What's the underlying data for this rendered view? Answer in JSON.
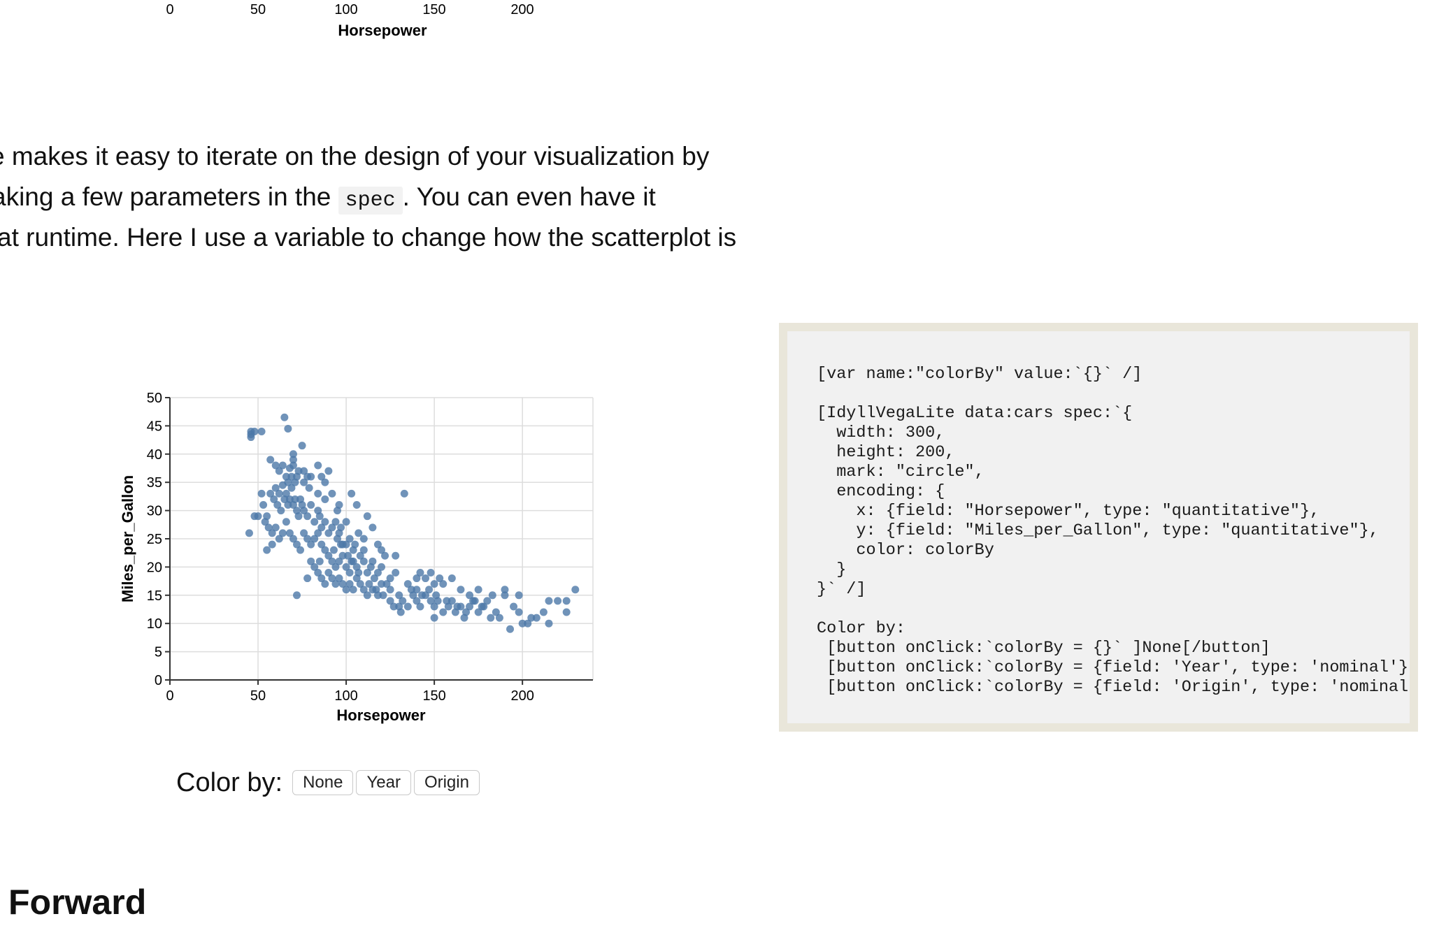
{
  "top_axis": {
    "ticks": [
      "0",
      "50",
      "100",
      "150",
      "200"
    ],
    "label": "Horsepower"
  },
  "prose": {
    "line1": "e makes it easy to iterate on the design of your visualization by",
    "line2_before": "aking a few parameters in the ",
    "line2_code": "spec",
    "line2_after": ". You can even have it",
    "line3": "at runtime. Here I use a variable to change how the scatterplot is"
  },
  "chart_data": {
    "type": "scatter",
    "xlabel": "Horsepower",
    "ylabel": "Miles_per_Gallon",
    "xlim": [
      0,
      240
    ],
    "ylim": [
      0,
      50
    ],
    "x_ticks": [
      0,
      50,
      100,
      150,
      200
    ],
    "y_ticks": [
      0,
      5,
      10,
      15,
      20,
      25,
      30,
      35,
      40,
      45,
      50
    ],
    "grid": true,
    "point_color": "#4c78a8",
    "points": [
      [
        46,
        44
      ],
      [
        46,
        43.5
      ],
      [
        48,
        44
      ],
      [
        52,
        44
      ],
      [
        46,
        43
      ],
      [
        65,
        46.5
      ],
      [
        67,
        44.5
      ],
      [
        70,
        40
      ],
      [
        70,
        39
      ],
      [
        75,
        41.5
      ],
      [
        57,
        39
      ],
      [
        60,
        38
      ],
      [
        62,
        37
      ],
      [
        64,
        38
      ],
      [
        66,
        36
      ],
      [
        68,
        37.5
      ],
      [
        70,
        38
      ],
      [
        72,
        36
      ],
      [
        76,
        37
      ],
      [
        78,
        36
      ],
      [
        80,
        36
      ],
      [
        84,
        38
      ],
      [
        86,
        36
      ],
      [
        90,
        37
      ],
      [
        88,
        35
      ],
      [
        92,
        33
      ],
      [
        96,
        31
      ],
      [
        103,
        33
      ],
      [
        106,
        31
      ],
      [
        52,
        33
      ],
      [
        53,
        31
      ],
      [
        55,
        29
      ],
      [
        60,
        34
      ],
      [
        62,
        33
      ],
      [
        64,
        34.5
      ],
      [
        65,
        32
      ],
      [
        66,
        33
      ],
      [
        67,
        31
      ],
      [
        68,
        32
      ],
      [
        69,
        34
      ],
      [
        70,
        31
      ],
      [
        71,
        32
      ],
      [
        72,
        30
      ],
      [
        73,
        29
      ],
      [
        74,
        32
      ],
      [
        75,
        31
      ],
      [
        76,
        30
      ],
      [
        78,
        29
      ],
      [
        80,
        31
      ],
      [
        82,
        28
      ],
      [
        84,
        30
      ],
      [
        85,
        29
      ],
      [
        86,
        27
      ],
      [
        88,
        28
      ],
      [
        90,
        26
      ],
      [
        92,
        27
      ],
      [
        94,
        28
      ],
      [
        95,
        25
      ],
      [
        96,
        26
      ],
      [
        97,
        27
      ],
      [
        98,
        24
      ],
      [
        100,
        24
      ],
      [
        102,
        25
      ],
      [
        104,
        23
      ],
      [
        105,
        24
      ],
      [
        107,
        26
      ],
      [
        110,
        25
      ],
      [
        112,
        29
      ],
      [
        115,
        27
      ],
      [
        118,
        24
      ],
      [
        120,
        23
      ],
      [
        122,
        22
      ],
      [
        128,
        22
      ],
      [
        133,
        33
      ],
      [
        45,
        26
      ],
      [
        48,
        29
      ],
      [
        50,
        29
      ],
      [
        55,
        23
      ],
      [
        58,
        26
      ],
      [
        60,
        27
      ],
      [
        62,
        25
      ],
      [
        64,
        26
      ],
      [
        66,
        28
      ],
      [
        68,
        26
      ],
      [
        70,
        25
      ],
      [
        72,
        24
      ],
      [
        74,
        23
      ],
      [
        76,
        26
      ],
      [
        78,
        25
      ],
      [
        80,
        24
      ],
      [
        82,
        25
      ],
      [
        84,
        26
      ],
      [
        86,
        24
      ],
      [
        88,
        23
      ],
      [
        90,
        22
      ],
      [
        92,
        21
      ],
      [
        94,
        20
      ],
      [
        96,
        21
      ],
      [
        98,
        22
      ],
      [
        100,
        20
      ],
      [
        102,
        19
      ],
      [
        104,
        21
      ],
      [
        106,
        20
      ],
      [
        108,
        22
      ],
      [
        110,
        21
      ],
      [
        112,
        19
      ],
      [
        114,
        20
      ],
      [
        116,
        18
      ],
      [
        118,
        19
      ],
      [
        120,
        20
      ],
      [
        123,
        17
      ],
      [
        125,
        18
      ],
      [
        128,
        19
      ],
      [
        80,
        21
      ],
      [
        82,
        20
      ],
      [
        84,
        19
      ],
      [
        86,
        18
      ],
      [
        88,
        17
      ],
      [
        90,
        19
      ],
      [
        92,
        18
      ],
      [
        94,
        17
      ],
      [
        96,
        18
      ],
      [
        98,
        17
      ],
      [
        100,
        16
      ],
      [
        102,
        17
      ],
      [
        104,
        16
      ],
      [
        106,
        18
      ],
      [
        108,
        17
      ],
      [
        110,
        16
      ],
      [
        112,
        15
      ],
      [
        115,
        16
      ],
      [
        118,
        15
      ],
      [
        120,
        17
      ],
      [
        125,
        16
      ],
      [
        130,
        15
      ],
      [
        132,
        14
      ],
      [
        135,
        13
      ],
      [
        138,
        15
      ],
      [
        140,
        14
      ],
      [
        142,
        13
      ],
      [
        145,
        15
      ],
      [
        148,
        14
      ],
      [
        150,
        13
      ],
      [
        152,
        14
      ],
      [
        155,
        12
      ],
      [
        158,
        13
      ],
      [
        160,
        14
      ],
      [
        162,
        12
      ],
      [
        165,
        13
      ],
      [
        168,
        12
      ],
      [
        170,
        13
      ],
      [
        172,
        14
      ],
      [
        175,
        12
      ],
      [
        178,
        13
      ],
      [
        180,
        14
      ],
      [
        182,
        11
      ],
      [
        185,
        12
      ],
      [
        190,
        15
      ],
      [
        193,
        9
      ],
      [
        195,
        13
      ],
      [
        198,
        12
      ],
      [
        200,
        10
      ],
      [
        205,
        11
      ],
      [
        208,
        11
      ],
      [
        212,
        12
      ],
      [
        215,
        14
      ],
      [
        215,
        10
      ],
      [
        220,
        14
      ],
      [
        225,
        12
      ],
      [
        225,
        14
      ],
      [
        230,
        16
      ],
      [
        150,
        11
      ],
      [
        140,
        16
      ],
      [
        145,
        18
      ],
      [
        155,
        17
      ],
      [
        160,
        18
      ],
      [
        165,
        16
      ],
      [
        170,
        15
      ],
      [
        175,
        16
      ],
      [
        190,
        16
      ],
      [
        198,
        15
      ],
      [
        125,
        14
      ],
      [
        130,
        13
      ],
      [
        135,
        17
      ],
      [
        140,
        18
      ],
      [
        142,
        19
      ],
      [
        148,
        19
      ],
      [
        150,
        17
      ],
      [
        153,
        18
      ],
      [
        110,
        23
      ],
      [
        115,
        21
      ],
      [
        100,
        28
      ],
      [
        95,
        30
      ],
      [
        88,
        32
      ],
      [
        84,
        33
      ],
      [
        79,
        34
      ],
      [
        76,
        35
      ],
      [
        73,
        37
      ],
      [
        71,
        35
      ],
      [
        69,
        36
      ],
      [
        67,
        35
      ],
      [
        63,
        30
      ],
      [
        61,
        31
      ],
      [
        59,
        32
      ],
      [
        57,
        33
      ],
      [
        54,
        28
      ],
      [
        56,
        27
      ],
      [
        58,
        24
      ],
      [
        72,
        15
      ],
      [
        78,
        18
      ],
      [
        85,
        21
      ],
      [
        93,
        23
      ],
      [
        97,
        24
      ],
      [
        101,
        22
      ],
      [
        103,
        21
      ],
      [
        107,
        19
      ],
      [
        113,
        17
      ],
      [
        117,
        16
      ],
      [
        121,
        15
      ],
      [
        127,
        13
      ],
      [
        131,
        12
      ],
      [
        137,
        16
      ],
      [
        143,
        15
      ],
      [
        147,
        16
      ],
      [
        151,
        15
      ],
      [
        157,
        14
      ],
      [
        163,
        13
      ],
      [
        167,
        11
      ],
      [
        173,
        14
      ],
      [
        177,
        13
      ],
      [
        183,
        15
      ],
      [
        187,
        11
      ],
      [
        203,
        10
      ]
    ]
  },
  "color_by": {
    "label": "Color by:",
    "buttons": [
      "None",
      "Year",
      "Origin"
    ]
  },
  "code_panel": {
    "code": "[var name:\"colorBy\" value:`{}` /]\n\n[IdyllVegaLite data:cars spec:`{\n  width: 300,\n  height: 200,\n  mark: \"circle\",\n  encoding: {\n    x: {field: \"Horsepower\", type: \"quantitative\"},\n    y: {field: \"Miles_per_Gallon\", type: \"quantitative\"},\n    color: colorBy\n  }\n}` /]\n\nColor by:\n [button onClick:`colorBy = {}` ]None[/button]\n [button onClick:`colorBy = {field: 'Year', type: 'nominal'}` ]Year[/button]\n [button onClick:`colorBy = {field: 'Origin', type: 'nominal'}` ]Origin[/button]"
  },
  "section": {
    "heading": "Forward"
  }
}
